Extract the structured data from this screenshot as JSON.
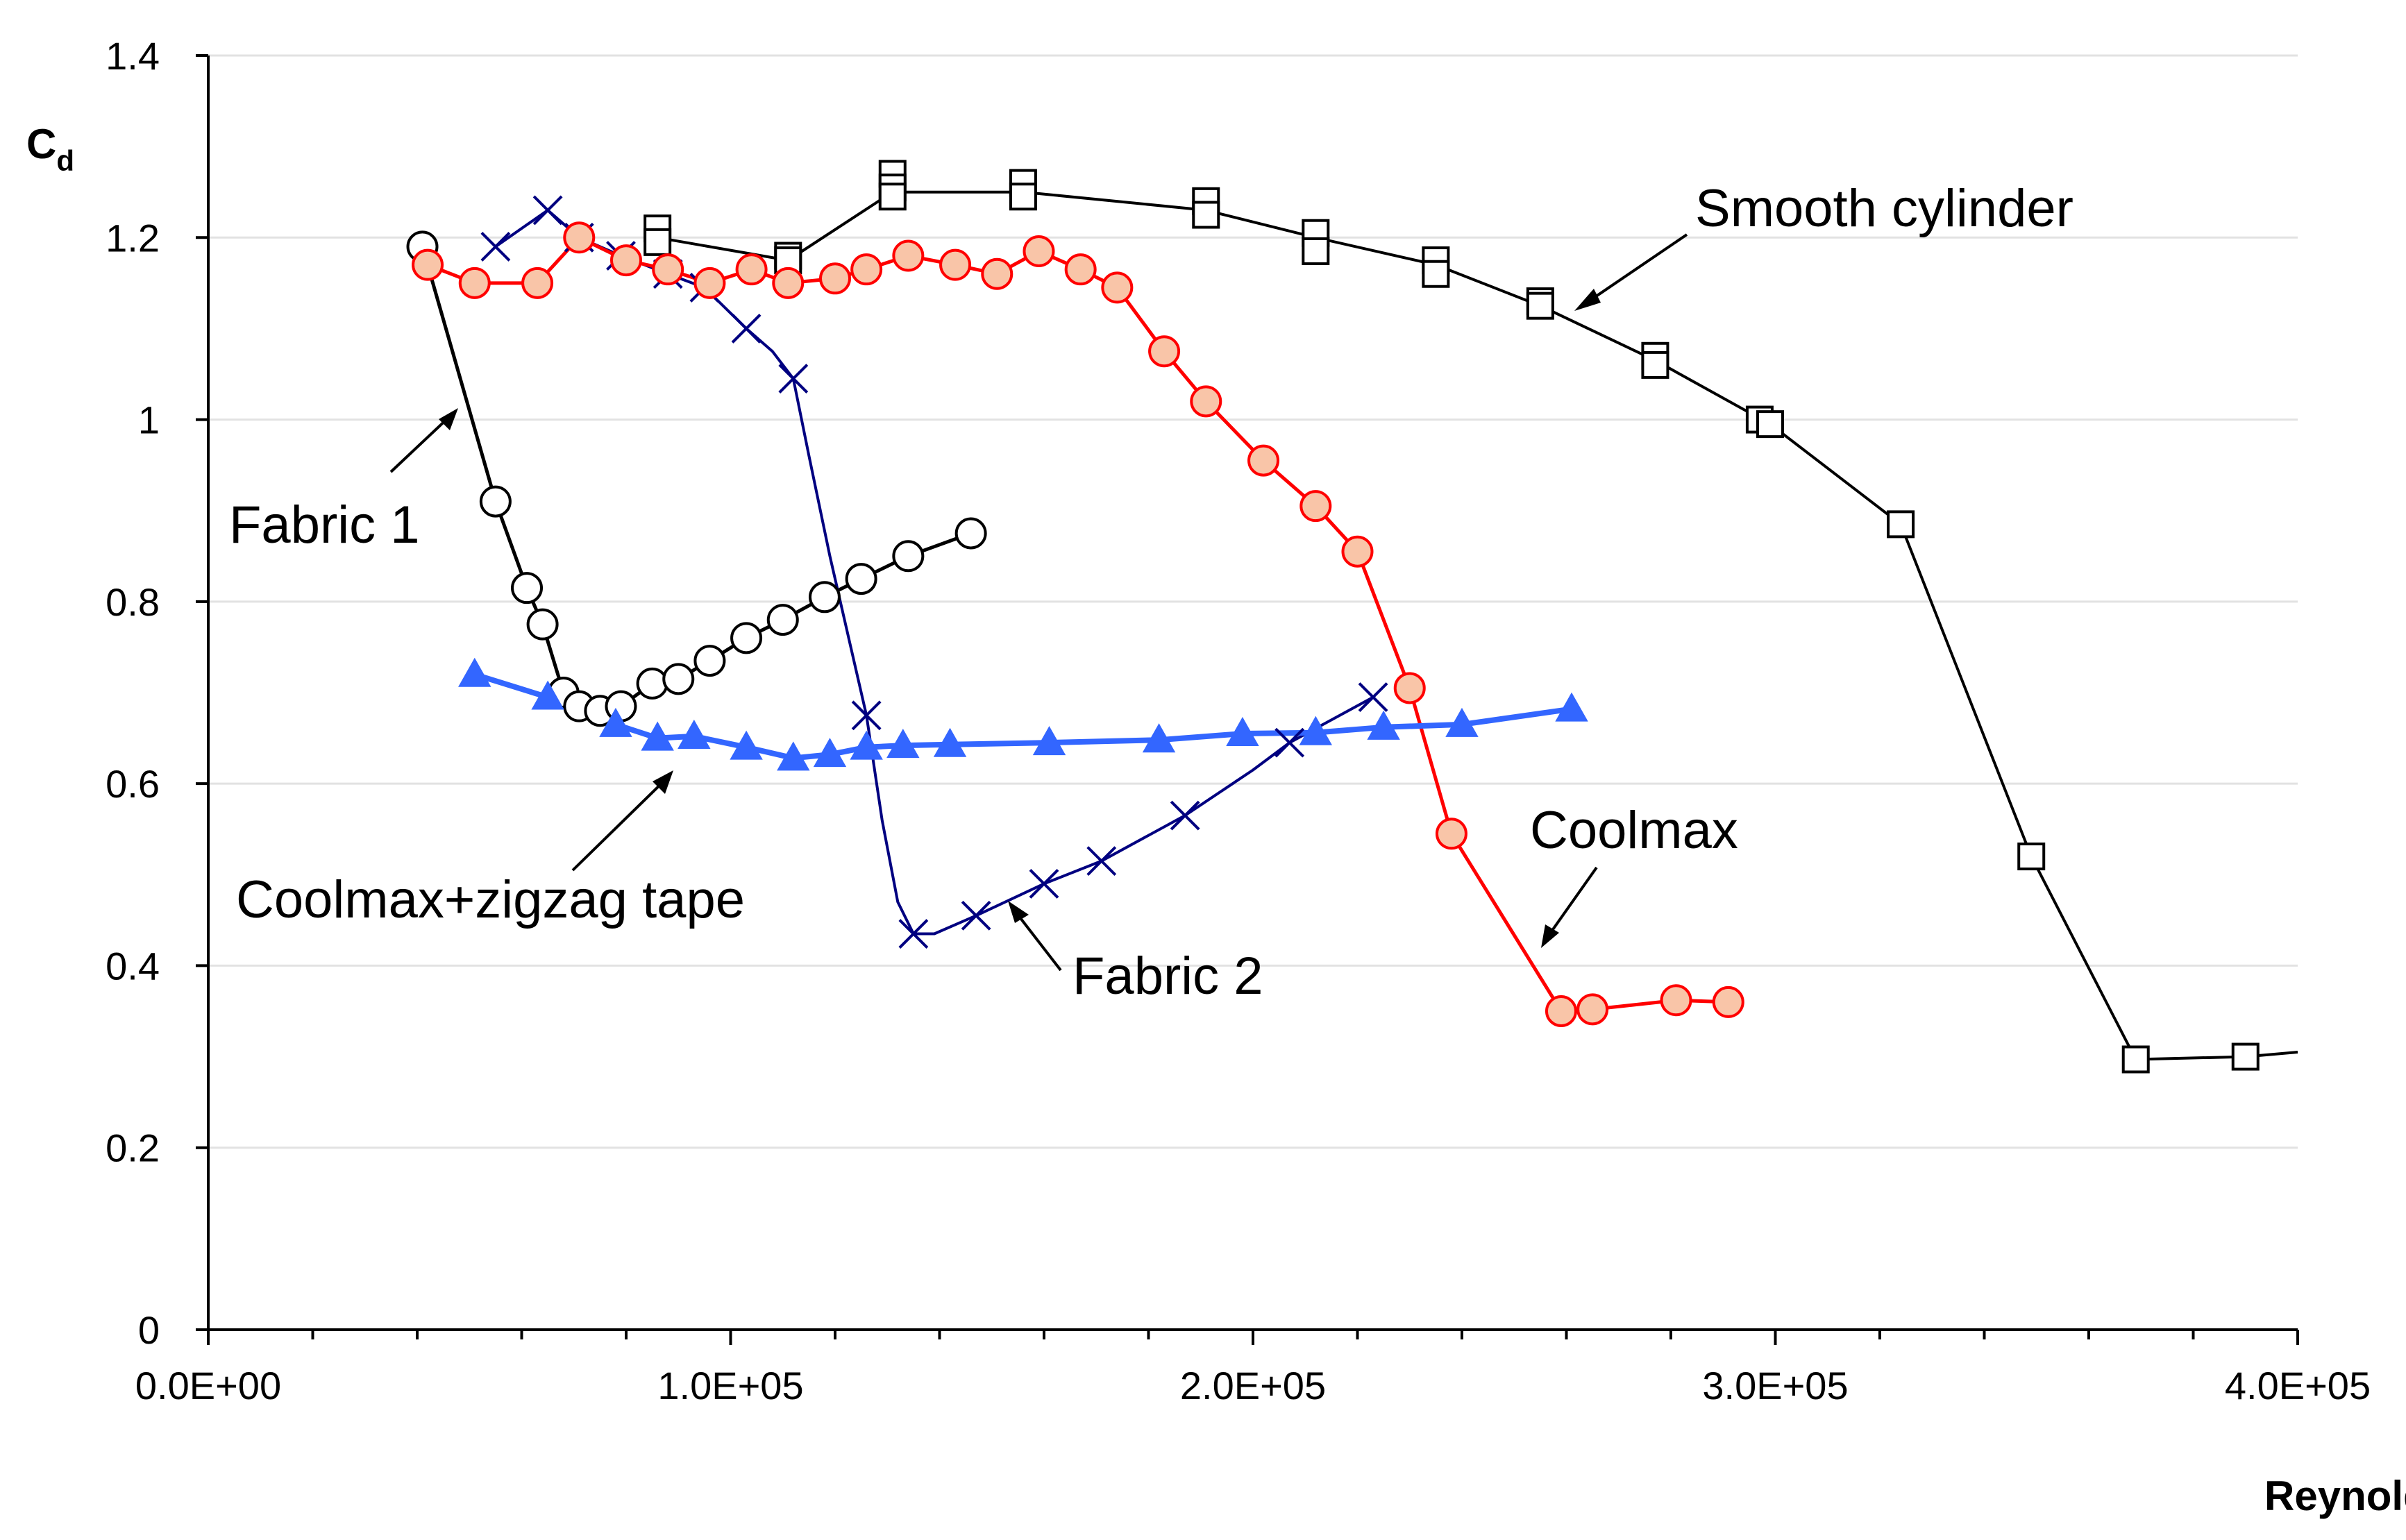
{
  "chart_data": {
    "type": "line",
    "title": "",
    "xlabel": "Reynolds number",
    "ylabel_main": "C",
    "ylabel_sub": "d",
    "xlim": [
      0,
      400000
    ],
    "ylim": [
      0,
      1.4
    ],
    "x_ticks": [
      0,
      100000,
      200000,
      300000,
      400000
    ],
    "x_tick_labels": [
      "0.0E+00",
      "1.0E+05",
      "2.0E+05",
      "3.0E+05",
      "4.0E+05"
    ],
    "y_ticks": [
      0,
      0.2,
      0.4,
      0.6,
      0.8,
      1,
      1.2,
      1.4
    ],
    "y_tick_labels": [
      "0",
      "0.2",
      "0.4",
      "0.6",
      "0.8",
      "1",
      "1.2",
      "1.4"
    ],
    "grid": "horizontal",
    "series": [
      {
        "name": "Smooth cylinder",
        "marker": "square",
        "color": "#000000",
        "marker_fill": "#ffffff",
        "points": [
          [
            86000,
            1.21
          ],
          [
            86000,
            1.195
          ],
          [
            111000,
            1.18
          ],
          [
            111000,
            1.175
          ],
          [
            131000,
            1.27
          ],
          [
            131000,
            1.255
          ],
          [
            131000,
            1.245
          ],
          [
            156000,
            1.26
          ],
          [
            156000,
            1.245
          ],
          [
            191000,
            1.24
          ],
          [
            191000,
            1.225
          ],
          [
            212000,
            1.205
          ],
          [
            212000,
            1.185
          ],
          [
            235000,
            1.175
          ],
          [
            235000,
            1.16
          ],
          [
            255000,
            1.13
          ],
          [
            255000,
            1.125
          ],
          [
            277000,
            1.07
          ],
          [
            277000,
            1.06
          ],
          [
            297000,
            1.0
          ],
          [
            299000,
            0.995
          ],
          [
            324000,
            0.885
          ],
          [
            349000,
            0.52
          ],
          [
            369000,
            0.297
          ],
          [
            390000,
            0.3
          ]
        ],
        "line": [
          [
            86000,
            1.2
          ],
          [
            111000,
            1.175
          ],
          [
            131000,
            1.25
          ],
          [
            156000,
            1.25
          ],
          [
            191000,
            1.23
          ],
          [
            212000,
            1.2
          ],
          [
            235000,
            1.17
          ],
          [
            255000,
            1.125
          ],
          [
            277000,
            1.065
          ],
          [
            299000,
            0.995
          ],
          [
            324000,
            0.885
          ],
          [
            349000,
            0.52
          ],
          [
            369000,
            0.297
          ],
          [
            390000,
            0.3
          ],
          [
            400000,
            0.305
          ]
        ]
      },
      {
        "name": "Fabric 1",
        "marker": "circle",
        "color": "#000000",
        "marker_fill": "#ffffff",
        "points": [
          [
            41000,
            1.19
          ],
          [
            55000,
            0.91
          ],
          [
            61000,
            0.815
          ],
          [
            64000,
            0.775
          ],
          [
            68000,
            0.7
          ],
          [
            71000,
            0.685
          ],
          [
            75000,
            0.68
          ],
          [
            79000,
            0.685
          ],
          [
            85000,
            0.71
          ],
          [
            90000,
            0.715
          ],
          [
            96000,
            0.735
          ],
          [
            103000,
            0.76
          ],
          [
            110000,
            0.78
          ],
          [
            118000,
            0.805
          ],
          [
            125000,
            0.825
          ],
          [
            134000,
            0.85
          ],
          [
            146000,
            0.875
          ]
        ],
        "line": [
          [
            41000,
            1.19
          ],
          [
            55000,
            0.91
          ],
          [
            61000,
            0.815
          ],
          [
            64000,
            0.775
          ],
          [
            68000,
            0.7
          ],
          [
            71000,
            0.685
          ],
          [
            75000,
            0.68
          ],
          [
            79000,
            0.685
          ],
          [
            85000,
            0.71
          ],
          [
            90000,
            0.715
          ],
          [
            96000,
            0.735
          ],
          [
            103000,
            0.76
          ],
          [
            110000,
            0.78
          ],
          [
            118000,
            0.805
          ],
          [
            125000,
            0.825
          ],
          [
            134000,
            0.85
          ],
          [
            146000,
            0.875
          ]
        ]
      },
      {
        "name": "Fabric 2",
        "marker": "x",
        "color": "#000080",
        "marker_fill": "none",
        "points": [
          [
            55000,
            1.19
          ],
          [
            65000,
            1.23
          ],
          [
            71000,
            1.2
          ],
          [
            79000,
            1.18
          ],
          [
            88000,
            1.16
          ],
          [
            95000,
            1.145
          ],
          [
            103000,
            1.1
          ],
          [
            112000,
            1.045
          ],
          [
            126000,
            0.675
          ],
          [
            135000,
            0.435
          ],
          [
            147000,
            0.455
          ],
          [
            160000,
            0.49
          ],
          [
            171000,
            0.515
          ],
          [
            187000,
            0.565
          ],
          [
            207000,
            0.645
          ],
          [
            223000,
            0.695
          ]
        ],
        "line": [
          [
            55000,
            1.19
          ],
          [
            65000,
            1.23
          ],
          [
            71000,
            1.2
          ],
          [
            79000,
            1.18
          ],
          [
            88000,
            1.16
          ],
          [
            95000,
            1.145
          ],
          [
            103000,
            1.1
          ],
          [
            108000,
            1.075
          ],
          [
            112000,
            1.045
          ],
          [
            115000,
            0.96
          ],
          [
            119000,
            0.85
          ],
          [
            123000,
            0.75
          ],
          [
            126000,
            0.675
          ],
          [
            129000,
            0.56
          ],
          [
            132000,
            0.47
          ],
          [
            135000,
            0.435
          ],
          [
            139000,
            0.435
          ],
          [
            147000,
            0.455
          ],
          [
            160000,
            0.49
          ],
          [
            171000,
            0.515
          ],
          [
            187000,
            0.565
          ],
          [
            200000,
            0.615
          ],
          [
            207000,
            0.645
          ],
          [
            223000,
            0.695
          ]
        ]
      },
      {
        "name": "Coolmax",
        "marker": "circle",
        "color": "#ff0000",
        "marker_fill": "#f9c5a8",
        "points": [
          [
            42000,
            1.17
          ],
          [
            51000,
            1.15
          ],
          [
            63000,
            1.15
          ],
          [
            71000,
            1.2
          ],
          [
            80000,
            1.175
          ],
          [
            88000,
            1.165
          ],
          [
            96000,
            1.15
          ],
          [
            104000,
            1.165
          ],
          [
            111000,
            1.15
          ],
          [
            120000,
            1.155
          ],
          [
            126000,
            1.165
          ],
          [
            134000,
            1.18
          ],
          [
            143000,
            1.17
          ],
          [
            151000,
            1.16
          ],
          [
            159000,
            1.185
          ],
          [
            167000,
            1.165
          ],
          [
            174000,
            1.145
          ],
          [
            183000,
            1.075
          ],
          [
            191000,
            1.02
          ],
          [
            202000,
            0.955
          ],
          [
            212000,
            0.905
          ],
          [
            220000,
            0.855
          ],
          [
            230000,
            0.705
          ],
          [
            238000,
            0.545
          ],
          [
            259000,
            0.35
          ],
          [
            265000,
            0.352
          ],
          [
            281000,
            0.362
          ],
          [
            291000,
            0.36
          ]
        ],
        "line": [
          [
            42000,
            1.17
          ],
          [
            51000,
            1.15
          ],
          [
            63000,
            1.15
          ],
          [
            71000,
            1.2
          ],
          [
            80000,
            1.175
          ],
          [
            88000,
            1.165
          ],
          [
            96000,
            1.15
          ],
          [
            104000,
            1.165
          ],
          [
            111000,
            1.15
          ],
          [
            120000,
            1.155
          ],
          [
            126000,
            1.165
          ],
          [
            134000,
            1.18
          ],
          [
            143000,
            1.17
          ],
          [
            151000,
            1.16
          ],
          [
            159000,
            1.185
          ],
          [
            167000,
            1.165
          ],
          [
            174000,
            1.145
          ],
          [
            183000,
            1.075
          ],
          [
            191000,
            1.02
          ],
          [
            202000,
            0.955
          ],
          [
            212000,
            0.905
          ],
          [
            220000,
            0.855
          ],
          [
            230000,
            0.705
          ],
          [
            238000,
            0.545
          ],
          [
            259000,
            0.35
          ],
          [
            265000,
            0.352
          ],
          [
            281000,
            0.362
          ],
          [
            291000,
            0.36
          ]
        ]
      },
      {
        "name": "Coolmax+zigzag tape",
        "marker": "triangle",
        "color": "#3366ff",
        "marker_fill": "#3366ff",
        "points": [
          [
            51000,
            0.72
          ],
          [
            65000,
            0.695
          ],
          [
            78000,
            0.665
          ],
          [
            86000,
            0.65
          ],
          [
            93000,
            0.652
          ],
          [
            103000,
            0.64
          ],
          [
            112000,
            0.628
          ],
          [
            119000,
            0.632
          ],
          [
            126000,
            0.64
          ],
          [
            133000,
            0.642
          ],
          [
            142000,
            0.643
          ],
          [
            161000,
            0.645
          ],
          [
            182000,
            0.648
          ],
          [
            198000,
            0.655
          ],
          [
            212000,
            0.656
          ],
          [
            225000,
            0.662
          ],
          [
            240000,
            0.665
          ],
          [
            261000,
            0.682
          ]
        ],
        "line": [
          [
            51000,
            0.72
          ],
          [
            65000,
            0.695
          ],
          [
            78000,
            0.665
          ],
          [
            86000,
            0.65
          ],
          [
            93000,
            0.652
          ],
          [
            103000,
            0.64
          ],
          [
            112000,
            0.628
          ],
          [
            119000,
            0.632
          ],
          [
            126000,
            0.64
          ],
          [
            133000,
            0.642
          ],
          [
            142000,
            0.643
          ],
          [
            161000,
            0.645
          ],
          [
            182000,
            0.648
          ],
          [
            198000,
            0.655
          ],
          [
            212000,
            0.656
          ],
          [
            225000,
            0.662
          ],
          [
            240000,
            0.665
          ],
          [
            261000,
            0.682
          ]
        ]
      }
    ],
    "annotations": [
      {
        "text": "Smooth cylinder",
        "anchor": "right of curve near x=2.6E+05"
      },
      {
        "text": "Fabric 1",
        "anchor": "left, near x=5E+04"
      },
      {
        "text": "Coolmax+zigzag tape",
        "anchor": "below blue curve"
      },
      {
        "text": "Fabric 2",
        "anchor": "below navy curve minimum"
      },
      {
        "text": "Coolmax",
        "anchor": "near x=2.6E+05, y=0.6"
      }
    ]
  }
}
